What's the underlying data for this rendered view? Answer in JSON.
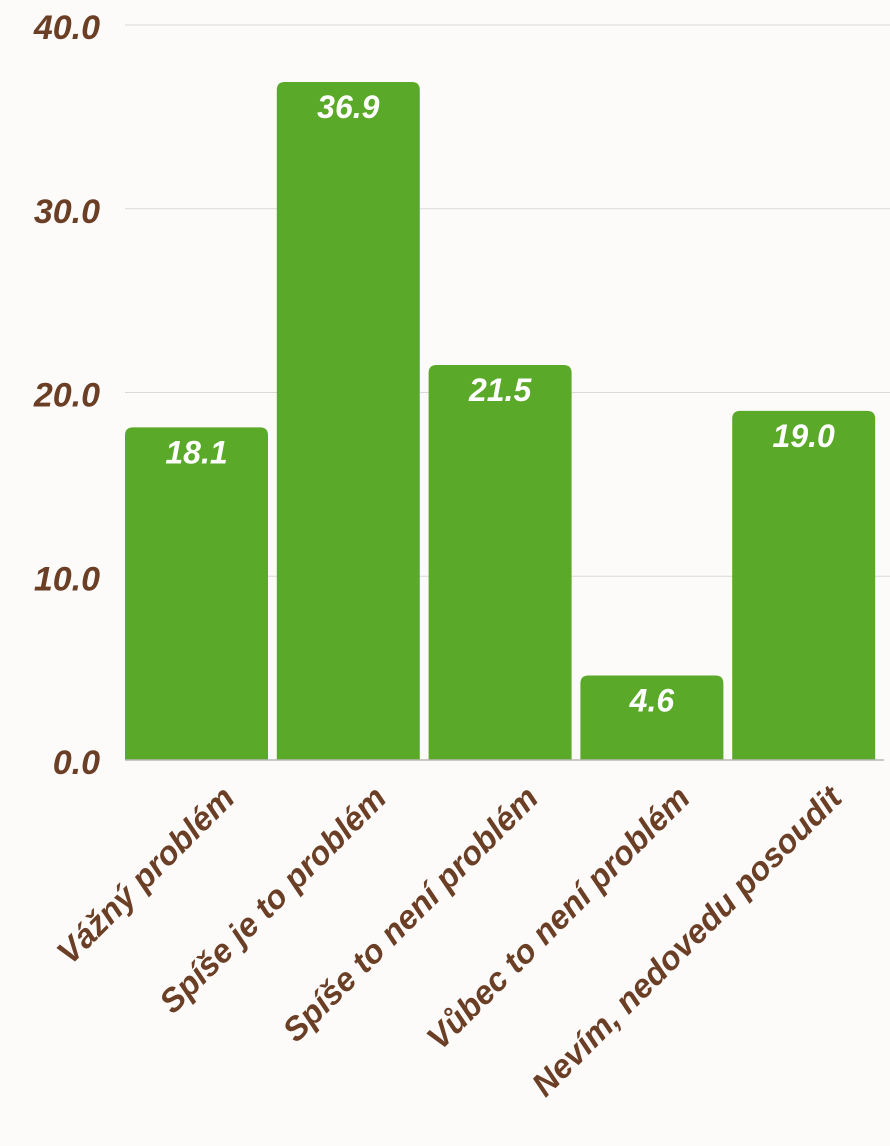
{
  "colors": {
    "bar": "#5aa928",
    "label_text": "#6b3f26",
    "value_text": "#ffffff",
    "grid": "#d9d9d9",
    "axis": "#b8b8b8",
    "background": "#fdfbfa"
  },
  "chart_data": {
    "type": "bar",
    "categories": [
      "Vážný problém",
      "Spíše je to problém",
      "Spíše to není problém",
      "Vůbec to není problém",
      "Nevím, nedovedu posoudit"
    ],
    "values": [
      18.1,
      36.9,
      21.5,
      4.6,
      19.0
    ],
    "value_labels": [
      "18.1",
      "36.9",
      "21.5",
      "4.6",
      "19.0"
    ],
    "yticks": [
      0,
      10,
      20,
      30,
      40
    ],
    "ytick_labels": [
      "0.0",
      "10.0",
      "20.0",
      "30.0",
      "40.0"
    ],
    "ylim": [
      0,
      40
    ],
    "grid": true,
    "legend": "none",
    "title": "",
    "xlabel": "",
    "ylabel": ""
  }
}
